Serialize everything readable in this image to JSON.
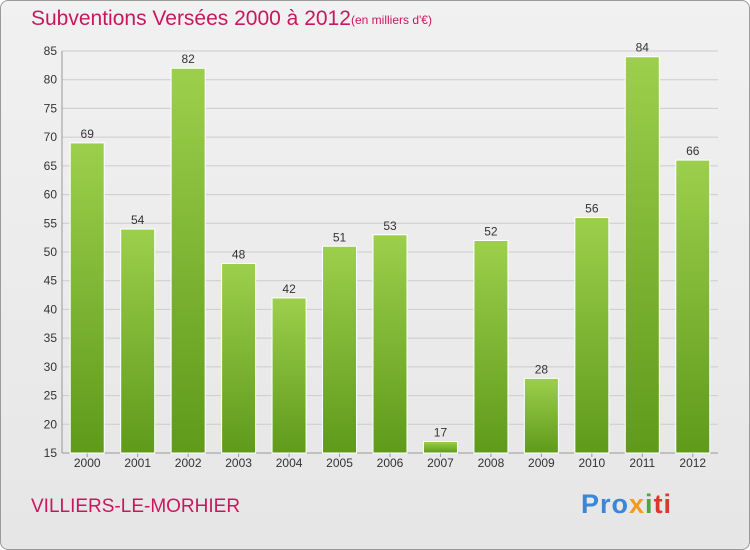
{
  "header": {
    "title": "Subventions Versées 2000 à 2012",
    "subtitle": "(en milliers d'€)"
  },
  "footer": {
    "commune": "VILLIERS-LE-MORHIER",
    "logo": [
      "Pro",
      "x",
      "i",
      "ti"
    ]
  },
  "colors": {
    "accent": "#c8175f",
    "bar_top": "#9ccf4c",
    "bar_bottom": "#5f9a1a",
    "grid": "#cccccc"
  },
  "chart_data": {
    "type": "bar",
    "title": "Subventions Versées 2000 à 2012",
    "subtitle": "(en milliers d'€)",
    "categories": [
      "2000",
      "2001",
      "2002",
      "2003",
      "2004",
      "2005",
      "2006",
      "2007",
      "2008",
      "2009",
      "2010",
      "2011",
      "2012"
    ],
    "values": [
      69,
      54,
      82,
      48,
      42,
      51,
      53,
      17,
      52,
      28,
      56,
      84,
      66
    ],
    "ylim": [
      15,
      85
    ],
    "yticks": [
      15,
      20,
      25,
      30,
      35,
      40,
      45,
      50,
      55,
      60,
      65,
      70,
      75,
      80,
      85
    ],
    "grid": true,
    "xlabel": "",
    "ylabel": ""
  }
}
